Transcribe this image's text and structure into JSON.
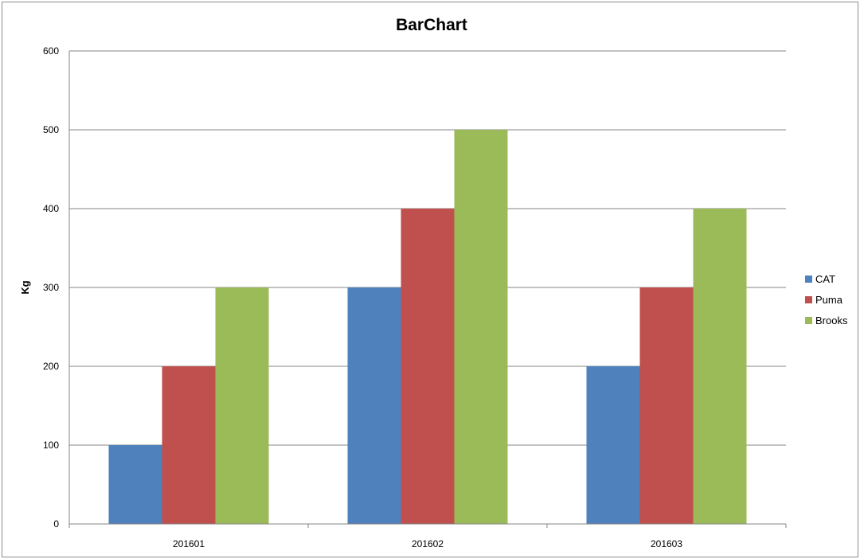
{
  "chart_data": {
    "type": "bar",
    "title": "BarChart",
    "xlabel": "",
    "ylabel": "Kg",
    "ylim": [
      0,
      600
    ],
    "yticks": [
      0,
      100,
      200,
      300,
      400,
      500,
      600
    ],
    "grid": true,
    "legend_position": "right",
    "categories": [
      "201601",
      "201602",
      "201603"
    ],
    "series": [
      {
        "name": "CAT",
        "color": "#4f81bd",
        "values": [
          100,
          300,
          200
        ]
      },
      {
        "name": "Puma",
        "color": "#c0504d",
        "values": [
          200,
          400,
          300
        ]
      },
      {
        "name": "Brooks",
        "color": "#9bbb59",
        "values": [
          300,
          500,
          400
        ]
      }
    ]
  }
}
